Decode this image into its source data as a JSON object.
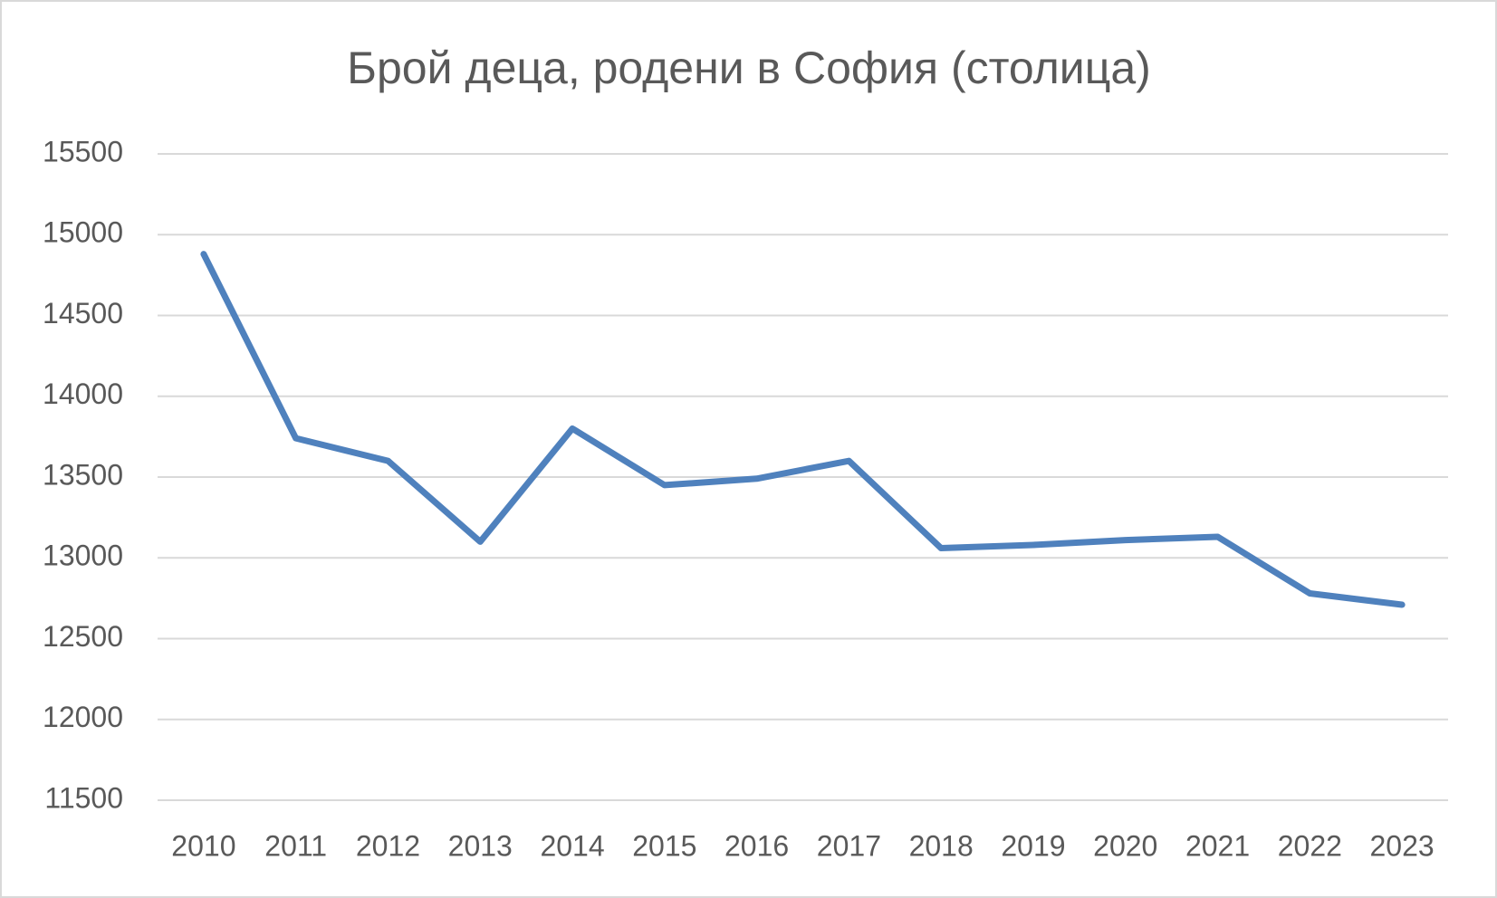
{
  "chart_data": {
    "type": "line",
    "title": "Брой деца, родени в София (столица)",
    "categories": [
      "2010",
      "2011",
      "2012",
      "2013",
      "2014",
      "2015",
      "2016",
      "2017",
      "2018",
      "2019",
      "2020",
      "2021",
      "2022",
      "2023"
    ],
    "series": [
      {
        "name": "Брой деца",
        "color": "#4f81bd",
        "values": [
          14880,
          13740,
          13600,
          13100,
          13800,
          13450,
          13490,
          13600,
          13060,
          13080,
          13110,
          13130,
          12780,
          12710
        ]
      }
    ],
    "ylim": [
      11500,
      15500
    ],
    "yticks": [
      11500,
      12000,
      12500,
      13000,
      13500,
      14000,
      14500,
      15000,
      15500
    ],
    "grid": true
  }
}
